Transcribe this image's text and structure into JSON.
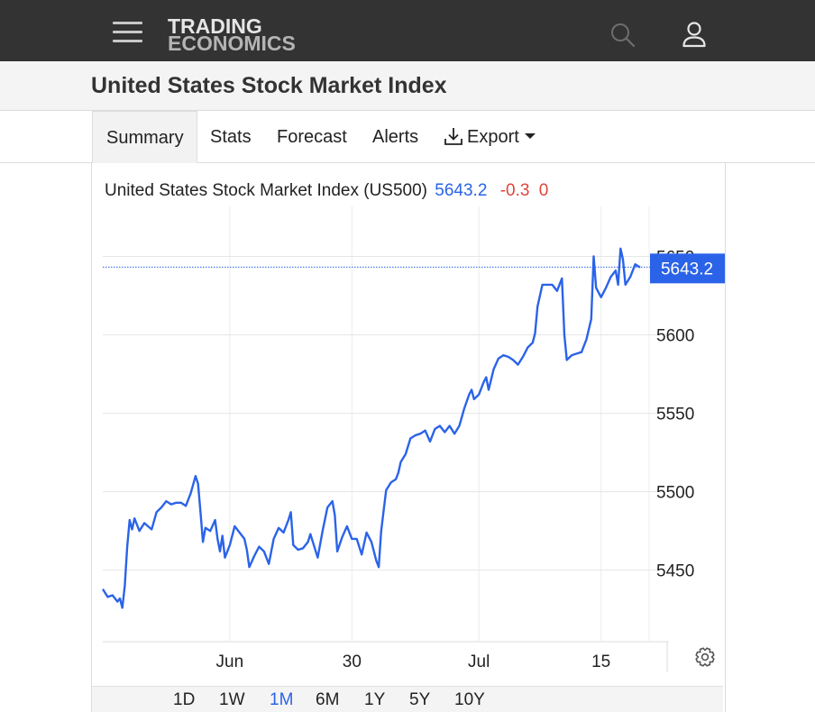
{
  "header": {
    "logo_line1": "TRADING",
    "logo_line2": "ECONOMICS",
    "icons": [
      "menu-icon",
      "search-icon",
      "user-icon"
    ]
  },
  "page": {
    "title": "United States Stock Market Index"
  },
  "tabs": [
    {
      "label": "Summary",
      "active": true
    },
    {
      "label": "Stats"
    },
    {
      "label": "Forecast"
    },
    {
      "label": "Alerts"
    },
    {
      "label": "Export",
      "icon": "download-icon",
      "dropdown": true
    }
  ],
  "chart": {
    "name": "United States Stock Market Index (US500)",
    "price": "5643.2",
    "change": "-0.3",
    "change_pct": "0",
    "current_value_label": "5643.2",
    "colors": {
      "line": "#2b63e8",
      "negative": "#e0443c",
      "badge": "#2b63e8"
    }
  },
  "ranges": [
    {
      "label": "1D"
    },
    {
      "label": "1W"
    },
    {
      "label": "1M",
      "active": true
    },
    {
      "label": "6M"
    },
    {
      "label": "1Y"
    },
    {
      "label": "5Y"
    },
    {
      "label": "10Y"
    }
  ],
  "chart_data": {
    "type": "line",
    "grid": true,
    "y_axis": {
      "position": "right",
      "ticks": [
        5450,
        5500,
        5550,
        5600,
        5650
      ],
      "range": [
        5405,
        5675
      ]
    },
    "x_axis": {
      "ticks": [
        "Jun",
        "30",
        "Jul",
        "15"
      ],
      "tick_positions": [
        5.2,
        10.2,
        15.4,
        20.4
      ],
      "range": [
        0,
        21
      ]
    },
    "current_value": 5643.2,
    "series": [
      {
        "values": [
          [
            0,
            5438
          ],
          [
            0.2,
            5433
          ],
          [
            0.4,
            5434
          ],
          [
            0.6,
            5430
          ],
          [
            0.7,
            5432
          ],
          [
            0.8,
            5426
          ],
          [
            0.9,
            5440
          ],
          [
            1.0,
            5465
          ],
          [
            1.1,
            5482
          ],
          [
            1.2,
            5476
          ],
          [
            1.3,
            5483
          ],
          [
            1.5,
            5475
          ],
          [
            1.7,
            5480
          ],
          [
            2.0,
            5476
          ],
          [
            2.2,
            5487
          ],
          [
            2.4,
            5490
          ],
          [
            2.6,
            5494
          ],
          [
            2.8,
            5492
          ],
          [
            3.0,
            5493
          ],
          [
            3.2,
            5493
          ],
          [
            3.4,
            5491
          ],
          [
            3.6,
            5499
          ],
          [
            3.8,
            5510
          ],
          [
            3.9,
            5505
          ],
          [
            4.0,
            5487
          ],
          [
            4.1,
            5468
          ],
          [
            4.2,
            5477
          ],
          [
            4.4,
            5475
          ],
          [
            4.6,
            5482
          ],
          [
            4.7,
            5470
          ],
          [
            4.8,
            5462
          ],
          [
            4.9,
            5472
          ],
          [
            5.0,
            5458
          ],
          [
            5.2,
            5466
          ],
          [
            5.4,
            5478
          ],
          [
            5.6,
            5474
          ],
          [
            5.8,
            5470
          ],
          [
            5.9,
            5463
          ],
          [
            6.0,
            5452
          ],
          [
            6.2,
            5459
          ],
          [
            6.4,
            5465
          ],
          [
            6.6,
            5462
          ],
          [
            6.8,
            5454
          ],
          [
            7.0,
            5470
          ],
          [
            7.2,
            5477
          ],
          [
            7.4,
            5474
          ],
          [
            7.6,
            5482
          ],
          [
            7.7,
            5487
          ],
          [
            7.8,
            5466
          ],
          [
            8.0,
            5463
          ],
          [
            8.2,
            5464
          ],
          [
            8.4,
            5468
          ],
          [
            8.5,
            5473
          ],
          [
            8.6,
            5468
          ],
          [
            8.8,
            5458
          ],
          [
            9.0,
            5475
          ],
          [
            9.2,
            5490
          ],
          [
            9.4,
            5494
          ],
          [
            9.5,
            5485
          ],
          [
            9.6,
            5462
          ],
          [
            9.8,
            5471
          ],
          [
            10.0,
            5478
          ],
          [
            10.2,
            5470
          ],
          [
            10.4,
            5470
          ],
          [
            10.6,
            5460
          ],
          [
            10.8,
            5474
          ],
          [
            11.0,
            5468
          ],
          [
            11.2,
            5456
          ],
          [
            11.3,
            5452
          ],
          [
            11.4,
            5475
          ],
          [
            11.6,
            5501
          ],
          [
            11.8,
            5506
          ],
          [
            12.0,
            5508
          ],
          [
            12.1,
            5512
          ],
          [
            12.2,
            5519
          ],
          [
            12.4,
            5524
          ],
          [
            12.6,
            5534
          ],
          [
            12.8,
            5536
          ],
          [
            13.0,
            5537
          ],
          [
            13.2,
            5539
          ],
          [
            13.4,
            5532
          ],
          [
            13.6,
            5540
          ],
          [
            13.8,
            5542
          ],
          [
            14.0,
            5538
          ],
          [
            14.2,
            5542
          ],
          [
            14.4,
            5537
          ],
          [
            14.6,
            5542
          ],
          [
            14.8,
            5553
          ],
          [
            15.0,
            5562
          ],
          [
            15.1,
            5565
          ],
          [
            15.2,
            5559
          ],
          [
            15.4,
            5562
          ],
          [
            15.6,
            5570
          ],
          [
            15.7,
            5573
          ],
          [
            15.8,
            5565
          ],
          [
            16.0,
            5578
          ],
          [
            16.2,
            5585
          ],
          [
            16.4,
            5587
          ],
          [
            16.6,
            5586
          ],
          [
            16.8,
            5584
          ],
          [
            17.0,
            5581
          ],
          [
            17.2,
            5586
          ],
          [
            17.4,
            5592
          ],
          [
            17.6,
            5595
          ],
          [
            17.7,
            5601
          ],
          [
            17.8,
            5618
          ],
          [
            18.0,
            5632
          ],
          [
            18.2,
            5632
          ],
          [
            18.4,
            5632
          ],
          [
            18.6,
            5628
          ],
          [
            18.8,
            5636
          ],
          [
            18.9,
            5600
          ],
          [
            19.0,
            5584
          ],
          [
            19.2,
            5587
          ],
          [
            19.4,
            5588
          ],
          [
            19.6,
            5589
          ],
          [
            19.8,
            5597
          ],
          [
            20.0,
            5610
          ],
          [
            20.1,
            5650
          ],
          [
            20.2,
            5630
          ],
          [
            20.4,
            5624
          ],
          [
            20.6,
            5630
          ],
          [
            20.8,
            5637
          ],
          [
            21.0,
            5641
          ],
          [
            21.1,
            5632
          ],
          [
            21.2,
            5655
          ],
          [
            21.3,
            5648
          ],
          [
            21.4,
            5632
          ],
          [
            21.6,
            5637
          ],
          [
            21.8,
            5645
          ],
          [
            22.0,
            5643
          ]
        ]
      }
    ]
  }
}
